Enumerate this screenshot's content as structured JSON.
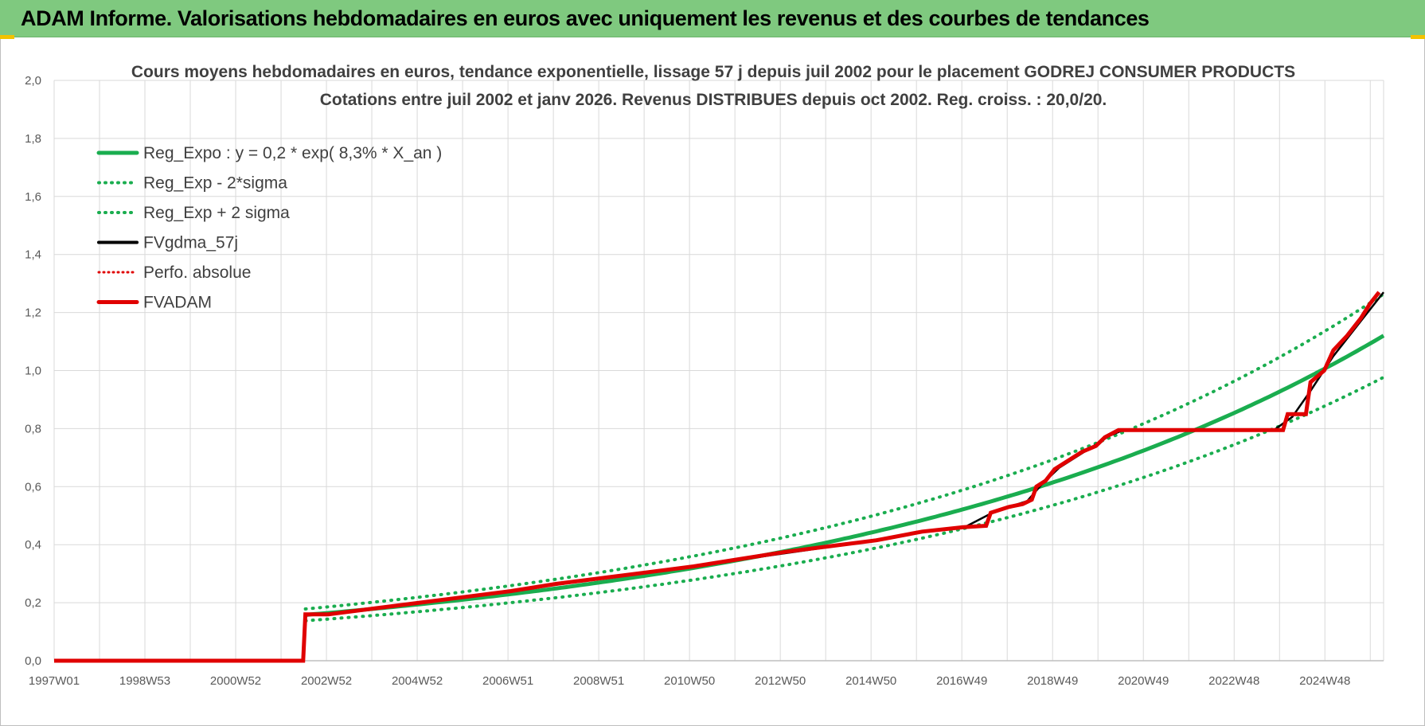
{
  "header": {
    "title": "ADAM Informe. Valorisations hebdomadaires en euros avec uniquement les revenus et des courbes de tendances"
  },
  "colors": {
    "header_bg": "#7fc97f",
    "reg_green": "#1aad4f",
    "fvadam_red": "#e00000",
    "fvgdma_black": "#000000",
    "grid": "#d9d9d9"
  },
  "chart_data": {
    "type": "line",
    "title_lines": [
      "Cours moyens hebdomadaires en euros, tendance exponentielle, lissage 57 j depuis juil 2002 pour le placement GODREJ CONSUMER PRODUCTS",
      "Cotations entre juil 2002 et janv 2026. Revenus DISTRIBUES depuis oct 2002. Reg. croiss. : 20,0/20."
    ],
    "x_tick_labels": [
      "1997W01",
      "1998W53",
      "2000W52",
      "2002W52",
      "2004W52",
      "2006W51",
      "2008W51",
      "2010W50",
      "2012W50",
      "2014W50",
      "2016W49",
      "2018W49",
      "2020W49",
      "2022W48",
      "2024W48"
    ],
    "xlim": [
      1997.0,
      2026.1
    ],
    "ylim": [
      0,
      2.0
    ],
    "y_ticks": [
      "0,0",
      "0,2",
      "0,4",
      "0,6",
      "0,8",
      "1,0",
      "1,2",
      "1,4",
      "1,6",
      "1,8",
      "2,0"
    ],
    "grid": true,
    "legend_position": "top-left",
    "legend": [
      "Reg_Expo : y = 0,2 * exp( 8,3% *  X_an )",
      "Reg_Exp - 2*sigma",
      "Reg_Exp + 2 sigma",
      "FVgdma_57j",
      "Perfo. absolue",
      "FVADAM"
    ],
    "reg_expo": {
      "a": 0.158,
      "rate": 0.083,
      "start": 2002.5,
      "end": 2026.1
    },
    "reg_minus_2sigma": {
      "factor": 0.872
    },
    "reg_plus_2sigma": {
      "factor": 1.128
    },
    "fvadam": [
      [
        1997.0,
        0.0
      ],
      [
        2002.45,
        0.0
      ],
      [
        2002.5,
        0.16
      ],
      [
        2003.0,
        0.16
      ],
      [
        2004.0,
        0.18
      ],
      [
        2005.0,
        0.2
      ],
      [
        2006.0,
        0.22
      ],
      [
        2007.0,
        0.24
      ],
      [
        2008.0,
        0.265
      ],
      [
        2009.0,
        0.285
      ],
      [
        2010.0,
        0.305
      ],
      [
        2011.0,
        0.325
      ],
      [
        2012.0,
        0.35
      ],
      [
        2013.0,
        0.375
      ],
      [
        2014.0,
        0.395
      ],
      [
        2015.0,
        0.415
      ],
      [
        2016.0,
        0.445
      ],
      [
        2016.9,
        0.46
      ],
      [
        2017.4,
        0.465
      ],
      [
        2017.5,
        0.51
      ],
      [
        2017.9,
        0.53
      ],
      [
        2018.2,
        0.54
      ],
      [
        2018.4,
        0.555
      ],
      [
        2018.5,
        0.6
      ],
      [
        2018.7,
        0.62
      ],
      [
        2018.9,
        0.66
      ],
      [
        2019.2,
        0.69
      ],
      [
        2019.5,
        0.72
      ],
      [
        2019.8,
        0.74
      ],
      [
        2020.0,
        0.77
      ],
      [
        2020.3,
        0.795
      ],
      [
        2023.9,
        0.795
      ],
      [
        2024.0,
        0.85
      ],
      [
        2024.4,
        0.85
      ],
      [
        2024.5,
        0.96
      ],
      [
        2024.8,
        1.0
      ],
      [
        2025.0,
        1.07
      ],
      [
        2025.3,
        1.12
      ],
      [
        2025.6,
        1.18
      ],
      [
        2025.8,
        1.23
      ],
      [
        2026.0,
        1.27
      ]
    ],
    "fvgdma": [
      [
        2002.5,
        0.155
      ],
      [
        2004.0,
        0.178
      ],
      [
        2006.0,
        0.218
      ],
      [
        2008.0,
        0.262
      ],
      [
        2010.0,
        0.303
      ],
      [
        2012.0,
        0.348
      ],
      [
        2014.0,
        0.393
      ],
      [
        2016.0,
        0.443
      ],
      [
        2016.9,
        0.458
      ],
      [
        2017.6,
        0.515
      ],
      [
        2018.3,
        0.55
      ],
      [
        2018.6,
        0.605
      ],
      [
        2019.0,
        0.665
      ],
      [
        2019.6,
        0.725
      ],
      [
        2020.1,
        0.775
      ],
      [
        2020.4,
        0.795
      ],
      [
        2023.7,
        0.795
      ],
      [
        2024.1,
        0.84
      ],
      [
        2024.5,
        0.93
      ],
      [
        2025.0,
        1.05
      ],
      [
        2025.6,
        1.17
      ],
      [
        2026.1,
        1.27
      ]
    ]
  }
}
